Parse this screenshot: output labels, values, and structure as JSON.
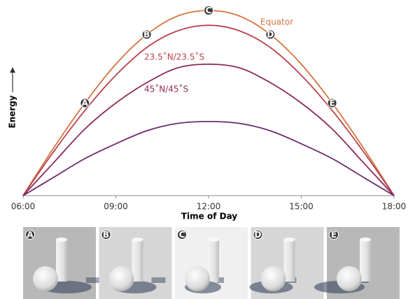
{
  "chart_data": {
    "type": "line",
    "xlabel": "Time of Day",
    "ylabel": "Energy",
    "x": [
      6,
      7,
      8,
      9,
      10,
      11,
      12,
      13,
      14,
      15,
      16,
      17,
      18
    ],
    "xlim": [
      6,
      18
    ],
    "xticks": [
      {
        "value": 6,
        "label": "06:00"
      },
      {
        "value": 9,
        "label": "09:00"
      },
      {
        "value": 12,
        "label": "12:00"
      },
      {
        "value": 15,
        "label": "15:00"
      },
      {
        "value": 18,
        "label": "18:00"
      }
    ],
    "ylim": [
      0,
      1
    ],
    "series": [
      {
        "name": "Equator",
        "color": "#d4733c",
        "values": [
          0,
          0.26,
          0.5,
          0.71,
          0.87,
          0.97,
          1,
          0.97,
          0.87,
          0.71,
          0.5,
          0.26,
          0
        ]
      },
      {
        "name": "23.5˚N/23.5˚S",
        "color": "#b9424e",
        "values": [
          0,
          0.24,
          0.46,
          0.65,
          0.8,
          0.89,
          0.92,
          0.89,
          0.8,
          0.65,
          0.46,
          0.24,
          0
        ]
      },
      {
        "name": "45˚N/45˚S",
        "color": "#8c2a58",
        "values": [
          0,
          0.18,
          0.36,
          0.5,
          0.61,
          0.69,
          0.71,
          0.69,
          0.61,
          0.5,
          0.36,
          0.18,
          0
        ]
      },
      {
        "color": "#6b2a6c",
        "values": [
          0,
          0.1,
          0.2,
          0.28,
          0.35,
          0.39,
          0.4,
          0.39,
          0.35,
          0.28,
          0.2,
          0.1,
          0
        ]
      }
    ],
    "markers": [
      {
        "label": "A",
        "x": 8
      },
      {
        "label": "B",
        "x": 10
      },
      {
        "label": "C",
        "x": 12
      },
      {
        "label": "D",
        "x": 14
      },
      {
        "label": "E",
        "x": 16
      }
    ]
  }
}
